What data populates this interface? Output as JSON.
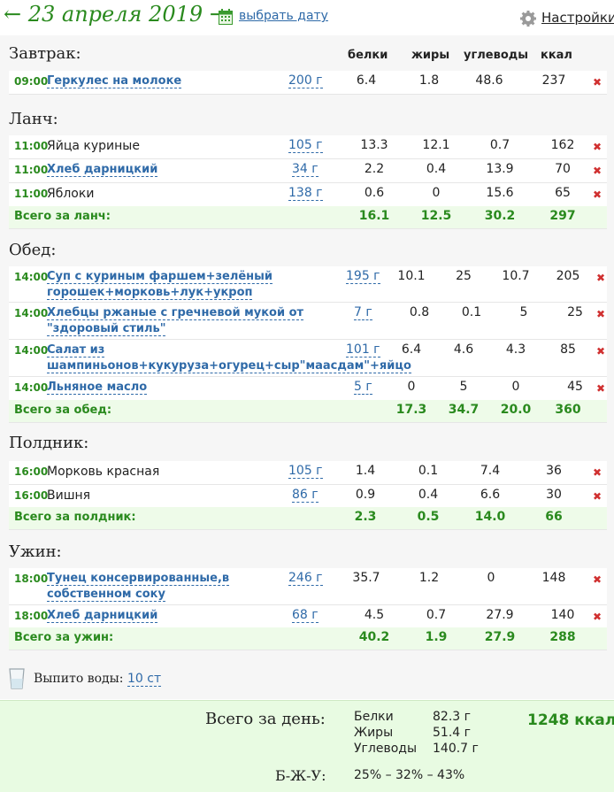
{
  "header": {
    "prev": "←",
    "date": "23 апреля 2019",
    "next": "→",
    "pick_date": "выбрать дату",
    "settings": "Настройки"
  },
  "columns": {
    "protein": "белки",
    "fat": "жиры",
    "carbs": "углеводы",
    "kcal": "ккал"
  },
  "meals": {
    "breakfast": {
      "title": "Завтрак:",
      "items": [
        {
          "time": "09:00",
          "name": "Геркулес на молоке",
          "qty": "200 г",
          "p": "6.4",
          "f": "1.8",
          "c": "48.6",
          "k": "237"
        }
      ]
    },
    "lunch": {
      "title": "Ланч:",
      "items": [
        {
          "time": "11:00",
          "name": "Яйца куриные",
          "qty": "105 г",
          "p": "13.3",
          "f": "12.1",
          "c": "0.7",
          "k": "162"
        },
        {
          "time": "11:00",
          "name": "Хлеб дарницкий",
          "qty": "34 г",
          "p": "2.2",
          "f": "0.4",
          "c": "13.9",
          "k": "70"
        },
        {
          "time": "11:00",
          "name": "Яблоки",
          "qty": "138 г",
          "p": "0.6",
          "f": "0",
          "c": "15.6",
          "k": "65"
        }
      ],
      "total": {
        "label": "Всего за ланч:",
        "p": "16.1",
        "f": "12.5",
        "c": "30.2",
        "k": "297"
      }
    },
    "dinner": {
      "title": "Обед:",
      "items": [
        {
          "time": "14:00",
          "name1": "Суп с куриным фаршем+зелёный",
          "name2": "горошек+морковь+лук+укроп",
          "qty": "195 г",
          "p": "10.1",
          "f": "25",
          "c": "10.7",
          "k": "205"
        },
        {
          "time": "14:00",
          "name1": "Хлебцы ржаные с гречневой мукой от",
          "name2": "\"здоровый стиль\"",
          "qty": "7 г",
          "p": "0.8",
          "f": "0.1",
          "c": "5",
          "k": "25"
        },
        {
          "time": "14:00",
          "name1": "Салат из",
          "name2": "шампиньонов+кукуруза+огурец+сыр\"маасдам\"+яйцо",
          "qty": "101 г",
          "p": "6.4",
          "f": "4.6",
          "c": "4.3",
          "k": "85"
        },
        {
          "time": "14:00",
          "name": "Льняное масло",
          "qty": "5 г",
          "p": "0",
          "f": "5",
          "c": "0",
          "k": "45"
        }
      ],
      "total": {
        "label": "Всего за обед:",
        "p": "17.3",
        "f": "34.7",
        "c": "20.0",
        "k": "360"
      }
    },
    "snack": {
      "title": "Полдник:",
      "items": [
        {
          "time": "16:00",
          "name": "Морковь красная",
          "qty": "105 г",
          "p": "1.4",
          "f": "0.1",
          "c": "7.4",
          "k": "36"
        },
        {
          "time": "16:00",
          "name": "Вишня",
          "qty": "86 г",
          "p": "0.9",
          "f": "0.4",
          "c": "6.6",
          "k": "30"
        }
      ],
      "total": {
        "label": "Всего за полдник:",
        "p": "2.3",
        "f": "0.5",
        "c": "14.0",
        "k": "66"
      }
    },
    "supper": {
      "title": "Ужин:",
      "items": [
        {
          "time": "18:00",
          "name1": "Тунец консервированные,в",
          "name2": "собственном соку",
          "qty": "246 г",
          "p": "35.7",
          "f": "1.2",
          "c": "0",
          "k": "148"
        },
        {
          "time": "18:00",
          "name": "Хлеб дарницкий",
          "qty": "68 г",
          "p": "4.5",
          "f": "0.7",
          "c": "27.9",
          "k": "140"
        }
      ],
      "total": {
        "label": "Всего за ужин:",
        "p": "40.2",
        "f": "1.9",
        "c": "27.9",
        "k": "288"
      }
    }
  },
  "delete_glyph": "✖",
  "water": {
    "label": "Выпито воды:",
    "value": "10 ст"
  },
  "summary": {
    "title": "Всего за день:",
    "protein_label": "Белки",
    "protein": "82.3 г",
    "fat_label": "Жиры",
    "fat": "51.4 г",
    "carbs_label": "Углеводы",
    "carbs": "140.7 г",
    "kcal": "1248 ккал",
    "bzu_label": "Б-Ж-У:",
    "bzu": "25% – 32% – 43%"
  },
  "colors": {
    "accent_green": "#2a8a1e",
    "link_blue": "#2f6aa8",
    "delete_red": "#d03030",
    "total_bg": "#eefbe9"
  }
}
